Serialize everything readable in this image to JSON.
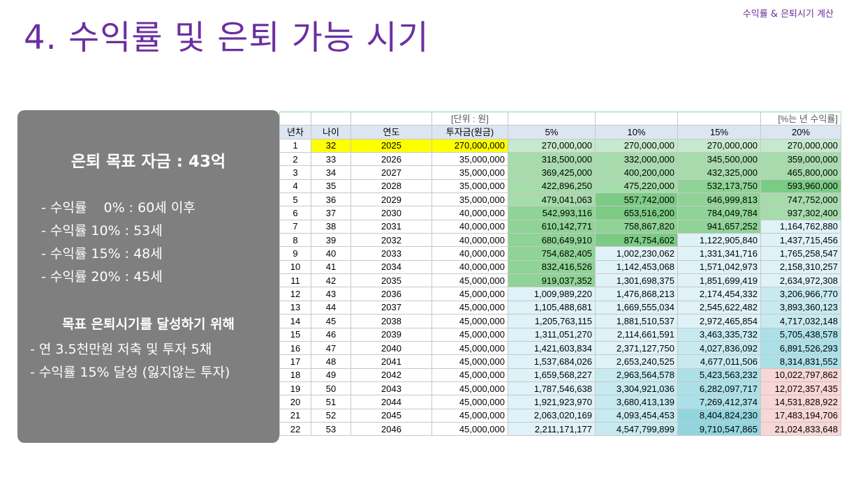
{
  "header": {
    "corner_label": "수익률 & 은퇴시기 계산",
    "title": "4. 수익률 및 은퇴 가능 시기"
  },
  "panel": {
    "goal": "은퇴 목표 자금 : 43억",
    "rates": [
      "- 수익률    0% : 60세 이후",
      "- 수익률 10% : 53세",
      "- 수익률 15% : 48세",
      "- 수익률 20% : 45세"
    ],
    "plan_heading": "목표 은퇴시기를 달성하기 위해",
    "plan_items": [
      "- 연 3.5천만원 저축 및 투자 5채",
      "- 수익률 15% 달성 (잃지않는 투자)"
    ]
  },
  "table": {
    "unit_label": "[단위 : 원]",
    "rate_note": "[%는 년 수익률]",
    "columns": [
      "년차",
      "나이",
      "연도",
      "투자금(원금)",
      "5%",
      "10%",
      "15%",
      "20%"
    ],
    "rows": [
      [
        "1",
        "32",
        "2025",
        "270,000,000",
        "270,000,000",
        "270,000,000",
        "270,000,000",
        "270,000,000"
      ],
      [
        "2",
        "33",
        "2026",
        "35,000,000",
        "318,500,000",
        "332,000,000",
        "345,500,000",
        "359,000,000"
      ],
      [
        "3",
        "34",
        "2027",
        "35,000,000",
        "369,425,000",
        "400,200,000",
        "432,325,000",
        "465,800,000"
      ],
      [
        "4",
        "35",
        "2028",
        "35,000,000",
        "422,896,250",
        "475,220,000",
        "532,173,750",
        "593,960,000"
      ],
      [
        "5",
        "36",
        "2029",
        "35,000,000",
        "479,041,063",
        "557,742,000",
        "646,999,813",
        "747,752,000"
      ],
      [
        "6",
        "37",
        "2030",
        "40,000,000",
        "542,993,116",
        "653,516,200",
        "784,049,784",
        "937,302,400"
      ],
      [
        "7",
        "38",
        "2031",
        "40,000,000",
        "610,142,771",
        "758,867,820",
        "941,657,252",
        "1,164,762,880"
      ],
      [
        "8",
        "39",
        "2032",
        "40,000,000",
        "680,649,910",
        "874,754,602",
        "1,122,905,840",
        "1,437,715,456"
      ],
      [
        "9",
        "40",
        "2033",
        "40,000,000",
        "754,682,405",
        "1,002,230,062",
        "1,331,341,716",
        "1,765,258,547"
      ],
      [
        "10",
        "41",
        "2034",
        "40,000,000",
        "832,416,526",
        "1,142,453,068",
        "1,571,042,973",
        "2,158,310,257"
      ],
      [
        "11",
        "42",
        "2035",
        "45,000,000",
        "919,037,352",
        "1,301,698,375",
        "1,851,699,419",
        "2,634,972,308"
      ],
      [
        "12",
        "43",
        "2036",
        "45,000,000",
        "1,009,989,220",
        "1,476,868,213",
        "2,174,454,332",
        "3,206,966,770"
      ],
      [
        "13",
        "44",
        "2037",
        "45,000,000",
        "1,105,488,681",
        "1,669,555,034",
        "2,545,622,482",
        "3,893,360,123"
      ],
      [
        "14",
        "45",
        "2038",
        "45,000,000",
        "1,205,763,115",
        "1,881,510,537",
        "2,972,465,854",
        "4,717,032,148"
      ],
      [
        "15",
        "46",
        "2039",
        "45,000,000",
        "1,311,051,270",
        "2,114,661,591",
        "3,463,335,732",
        "5,705,438,578"
      ],
      [
        "16",
        "47",
        "2040",
        "45,000,000",
        "1,421,603,834",
        "2,371,127,750",
        "4,027,836,092",
        "6,891,526,293"
      ],
      [
        "17",
        "48",
        "2041",
        "45,000,000",
        "1,537,684,026",
        "2,653,240,525",
        "4,677,011,506",
        "8,314,831,552"
      ],
      [
        "18",
        "49",
        "2042",
        "45,000,000",
        "1,659,568,227",
        "2,963,564,578",
        "5,423,563,232",
        "10,022,797,862"
      ],
      [
        "19",
        "50",
        "2043",
        "45,000,000",
        "1,787,546,638",
        "3,304,921,036",
        "6,282,097,717",
        "12,072,357,435"
      ],
      [
        "20",
        "51",
        "2044",
        "45,000,000",
        "1,921,923,970",
        "3,680,413,139",
        "7,269,412,374",
        "14,531,828,922"
      ],
      [
        "21",
        "52",
        "2045",
        "45,000,000",
        "2,063,020,169",
        "4,093,454,453",
        "8,404,824,230",
        "17,483,194,706"
      ],
      [
        "22",
        "53",
        "2046",
        "45,000,000",
        "2,211,171,177",
        "4,547,799,899",
        "9,710,547,865",
        "21,024,833,648"
      ]
    ],
    "colors": {
      "highlight": "#ffff00",
      "green": [
        "#c6e8cc",
        "#a6dbab",
        "#8fd396",
        "#7ccb85"
      ],
      "blue": [
        "#dff2f7",
        "#c7eaf0",
        "#ace0e8",
        "#92d5df"
      ],
      "pink": "#f9d6d6"
    }
  }
}
